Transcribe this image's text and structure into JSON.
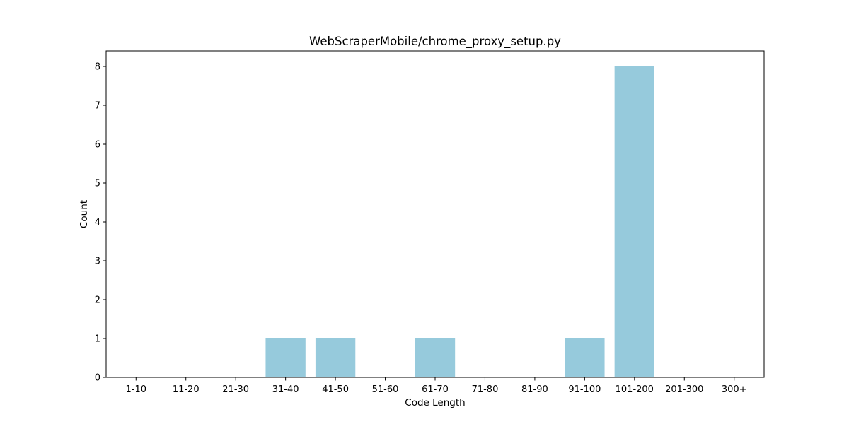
{
  "chart_data": {
    "type": "bar",
    "title": "WebScraperMobile/chrome_proxy_setup.py",
    "xlabel": "Code Length",
    "ylabel": "Count",
    "categories": [
      "1-10",
      "11-20",
      "21-30",
      "31-40",
      "41-50",
      "51-60",
      "61-70",
      "71-80",
      "81-90",
      "91-100",
      "101-200",
      "201-300",
      "300+"
    ],
    "values": [
      0,
      0,
      0,
      1,
      1,
      0,
      1,
      0,
      0,
      1,
      8,
      0,
      0
    ],
    "ylim": [
      0,
      8.4
    ],
    "yticks": [
      "0",
      "1",
      "2",
      "3",
      "4",
      "5",
      "6",
      "7",
      "8"
    ],
    "grid": false,
    "bar_color": "#96cadc",
    "axis_color": "#000000"
  }
}
